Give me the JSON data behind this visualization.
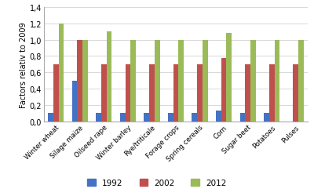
{
  "categories": [
    "Winter wheat",
    "Silage maize",
    "Oilseed rape",
    "Winter barley",
    "Rye/triticale",
    "Forage crops",
    "Spring cereals",
    "Corn",
    "Sugar beet",
    "Potatoes",
    "Pulses"
  ],
  "series": {
    "1992": [
      0.1,
      0.5,
      0.1,
      0.1,
      0.1,
      0.1,
      0.1,
      0.13,
      0.1,
      0.1,
      0.0
    ],
    "2002": [
      0.7,
      1.0,
      0.7,
      0.7,
      0.7,
      0.7,
      0.7,
      0.78,
      0.7,
      0.7,
      0.7
    ],
    "2012": [
      1.2,
      1.0,
      1.1,
      1.0,
      1.0,
      1.0,
      1.0,
      1.08,
      1.0,
      1.0,
      1.0
    ]
  },
  "colors": {
    "1992": "#4472C4",
    "2002": "#C0504D",
    "2012": "#9BBB59"
  },
  "ylabel": "Factors relativ to 2009",
  "ylim": [
    0,
    1.4
  ],
  "yticks": [
    0.0,
    0.2,
    0.4,
    0.6,
    0.8,
    1.0,
    1.2,
    1.4
  ],
  "ytick_labels": [
    "0,0",
    "0,2",
    "0,4",
    "0,6",
    "0,8",
    "1,0",
    "1,2",
    "1,4"
  ],
  "background_color": "#FFFFFF",
  "grid_color": "#D8D8D8",
  "bar_width": 0.22
}
